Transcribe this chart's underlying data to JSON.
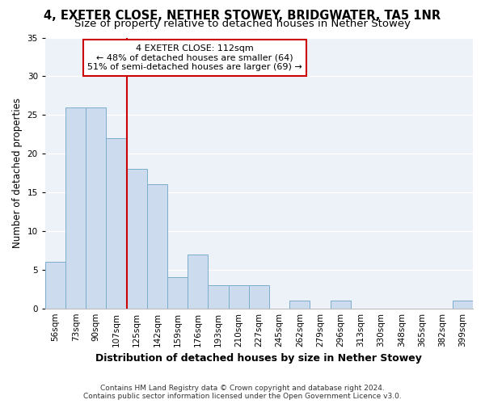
{
  "title": "4, EXETER CLOSE, NETHER STOWEY, BRIDGWATER, TA5 1NR",
  "subtitle": "Size of property relative to detached houses in Nether Stowey",
  "xlabel": "Distribution of detached houses by size in Nether Stowey",
  "ylabel": "Number of detached properties",
  "categories": [
    "56sqm",
    "73sqm",
    "90sqm",
    "107sqm",
    "125sqm",
    "142sqm",
    "159sqm",
    "176sqm",
    "193sqm",
    "210sqm",
    "227sqm",
    "245sqm",
    "262sqm",
    "279sqm",
    "296sqm",
    "313sqm",
    "330sqm",
    "348sqm",
    "365sqm",
    "382sqm",
    "399sqm"
  ],
  "values": [
    6,
    26,
    26,
    22,
    18,
    16,
    4,
    7,
    3,
    3,
    3,
    0,
    1,
    0,
    1,
    0,
    0,
    0,
    0,
    0,
    1
  ],
  "bar_color": "#ccdcee",
  "bar_edgecolor": "#7aadcc",
  "vline_color": "#cc0000",
  "annotation_line1": "4 EXETER CLOSE: 112sqm",
  "annotation_line2": "← 48% of detached houses are smaller (64)",
  "annotation_line3": "51% of semi-detached houses are larger (69) →",
  "annotation_box_color": "#ffffff",
  "annotation_box_edgecolor": "#cc0000",
  "ylim": [
    0,
    35
  ],
  "yticks": [
    0,
    5,
    10,
    15,
    20,
    25,
    30,
    35
  ],
  "fig_bg_color": "#ffffff",
  "plot_bg_color": "#edf2f9",
  "grid_color": "#ffffff",
  "title_fontsize": 10.5,
  "subtitle_fontsize": 9.5,
  "xlabel_fontsize": 9,
  "ylabel_fontsize": 8.5,
  "tick_fontsize": 7.5,
  "annotation_fontsize": 8,
  "footer_fontsize": 6.5,
  "footer": "Contains HM Land Registry data © Crown copyright and database right 2024.\nContains public sector information licensed under the Open Government Licence v3.0.",
  "bar_width": 1.0
}
